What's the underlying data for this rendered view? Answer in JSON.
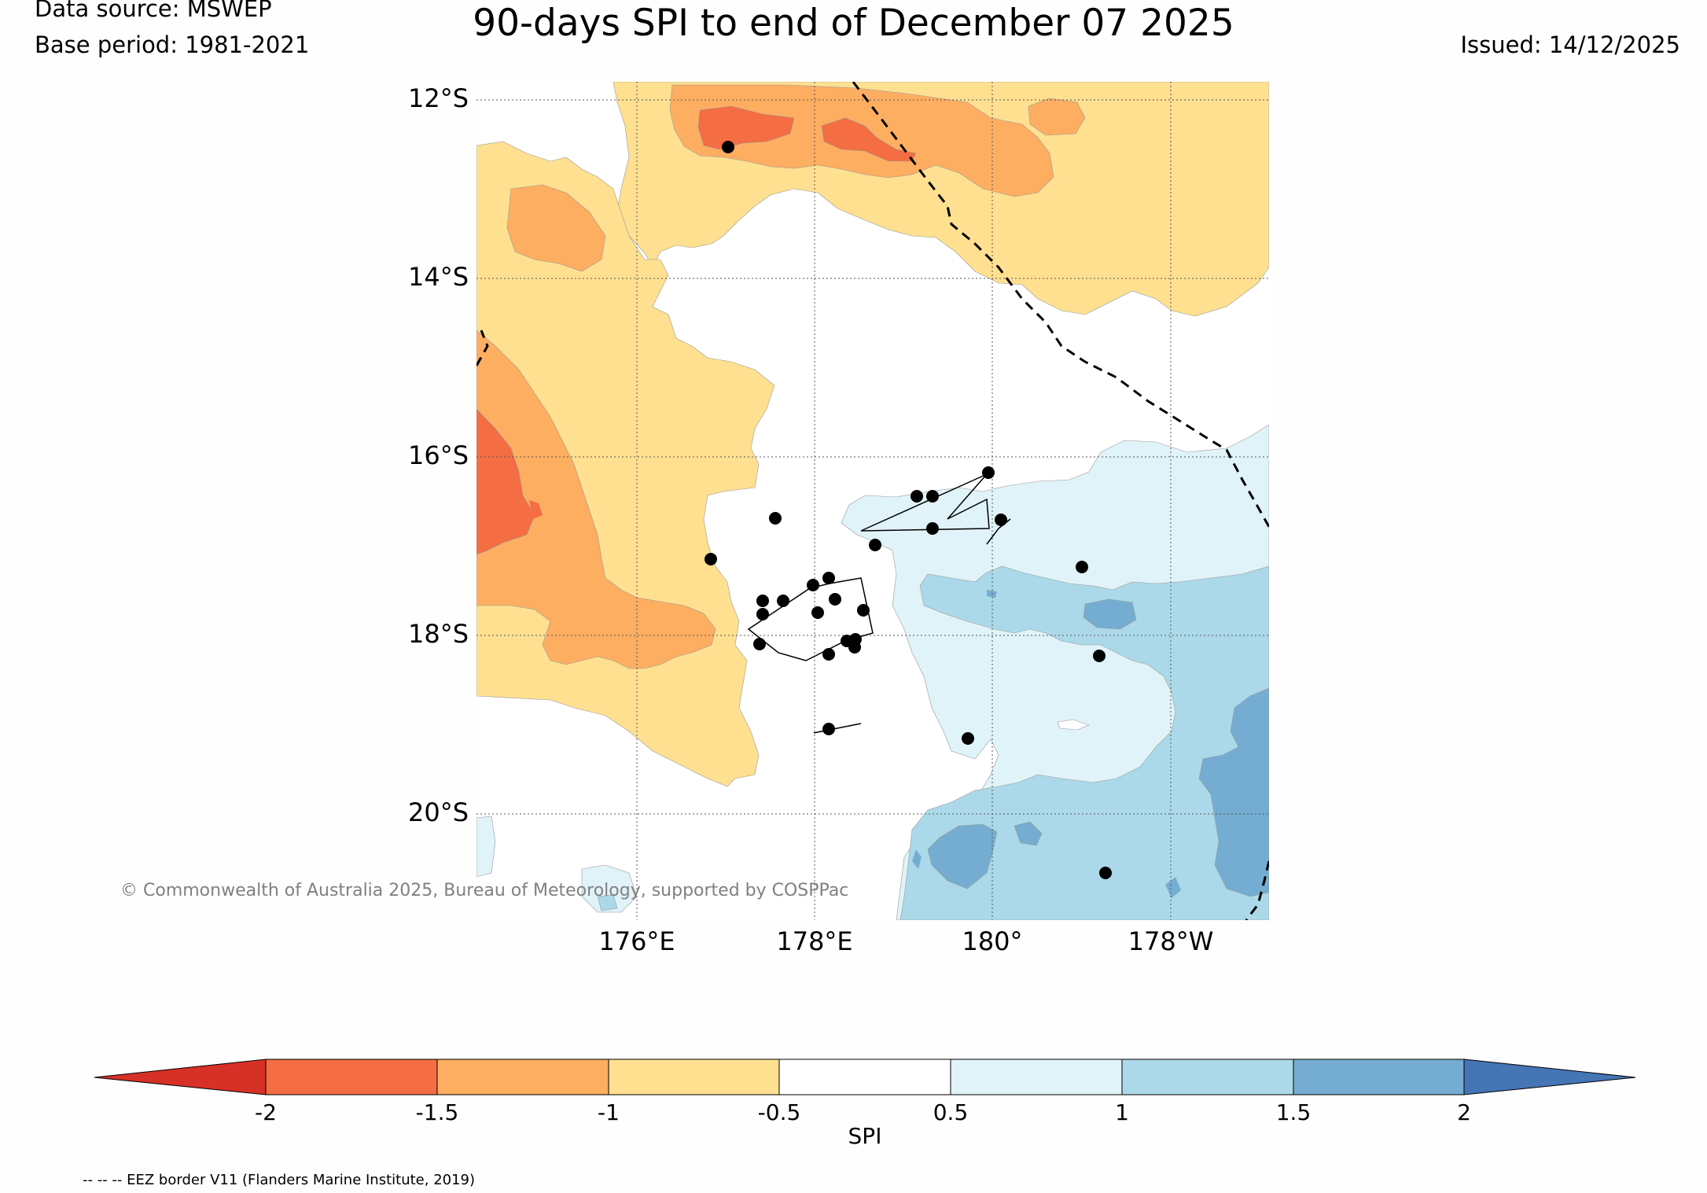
{
  "header": {
    "data_source": "Data source: MSWEP",
    "base_period": "Base period: 1981-2021",
    "title": "90-days SPI to end of December 07 2025",
    "issued": "Issued: 14/12/2025"
  },
  "map": {
    "lat_labels": [
      "12°S",
      "14°S",
      "16°S",
      "18°S",
      "20°S"
    ],
    "lon_labels": [
      "176°E",
      "178°E",
      "180°",
      "178°W"
    ],
    "copyright": "© Commonwealth of Australia 2025, Bureau of Meteorology, supported by COSPPac"
  },
  "colorbar": {
    "label": "SPI",
    "ticks": [
      "-2",
      "-1.5",
      "-1",
      "-0.5",
      "0.5",
      "1",
      "1.5",
      "2"
    ],
    "colors": {
      "below_-2": "#d73027",
      "-2_to_-1.5": "#f46d43",
      "-1.5_to_-1": "#fdae61",
      "-1_to_-0.5": "#fee090",
      "-0.5_to_0.5": "#ffffff",
      "0.5_to_1": "#e0f3f8",
      "1_to_1.5": "#abd9e9",
      "1.5_to_2": "#74add1",
      "above_2": "#4575b4"
    }
  },
  "footer": {
    "eez_note": "-- -- -- EEZ border V11 (Flanders Marine Institute, 2019)"
  }
}
